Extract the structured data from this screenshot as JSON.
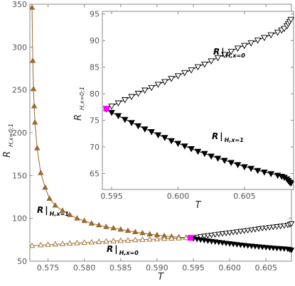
{
  "chart_data": [
    {
      "type": "line",
      "panel": "main",
      "xlabel": "T",
      "ylabel_main": "R",
      "ylabel_sub": "H,x=0;1",
      "xlim": [
        0.5725,
        0.6085
      ],
      "ylim": [
        50,
        350
      ],
      "xticks": [
        "0.575",
        "0.580",
        "0.585",
        "0.590",
        "0.595",
        "0.600",
        "0.605"
      ],
      "xtick_values": [
        0.575,
        0.58,
        0.585,
        0.59,
        0.595,
        0.6,
        0.605
      ],
      "yticks": [
        "50",
        "100",
        "150",
        "200",
        "250",
        "300",
        "350"
      ],
      "ytick_values": [
        50,
        100,
        150,
        200,
        250,
        300,
        350
      ],
      "grid": false,
      "annotations": [
        {
          "main": "R",
          "sub": "H,x=1",
          "near": "upper branch, left"
        },
        {
          "main": "R",
          "sub": "H,x=0",
          "near": "lower branch, right"
        }
      ],
      "special_point": {
        "x": 0.5946,
        "y": 77.2,
        "color": "#ff00ff"
      },
      "series": [
        {
          "color": "#9a6a2e",
          "marker": "filled-triangle-up",
          "x": [
            0.5728,
            0.5729,
            0.573,
            0.5731,
            0.5732,
            0.5735,
            0.574,
            0.5746,
            0.5752,
            0.576,
            0.577,
            0.578,
            0.579,
            0.58,
            0.581,
            0.582,
            0.583,
            0.584,
            0.585,
            0.586,
            0.587,
            0.588,
            0.589,
            0.59,
            0.591,
            0.592,
            0.593,
            0.594,
            0.5946
          ],
          "y": [
            346,
            284,
            251,
            231,
            212,
            182,
            153,
            136,
            123,
            115,
            109,
            104,
            100,
            97,
            94,
            92,
            90,
            88.5,
            87,
            85.5,
            84,
            82.8,
            81.5,
            80.5,
            79.5,
            78.7,
            78.0,
            77.5,
            77.2
          ]
        },
        {
          "color": "#9a6a2e",
          "marker": "open-triangle-up",
          "x": [
            0.5728,
            0.574,
            0.575,
            0.576,
            0.577,
            0.578,
            0.579,
            0.58,
            0.581,
            0.582,
            0.583,
            0.584,
            0.585,
            0.586,
            0.587,
            0.588,
            0.589,
            0.59,
            0.591,
            0.592,
            0.593,
            0.594,
            0.5946
          ],
          "y": [
            68,
            68.7,
            69.2,
            69.7,
            70.1,
            70.6,
            71.1,
            71.6,
            72.0,
            72.5,
            72.9,
            73.4,
            73.8,
            74.2,
            74.6,
            75.0,
            75.4,
            75.8,
            76.2,
            76.5,
            76.8,
            77.1,
            77.2
          ]
        },
        {
          "color": "#000000",
          "marker": "open-triangle-down",
          "x": [
            0.5946,
            0.595,
            0.5955,
            0.596,
            0.5965,
            0.597,
            0.5975,
            0.598,
            0.5985,
            0.599,
            0.5995,
            0.6,
            0.6005,
            0.601,
            0.6015,
            0.602,
            0.6025,
            0.603,
            0.6035,
            0.604,
            0.6045,
            0.605,
            0.6055,
            0.606,
            0.6065,
            0.607,
            0.6075,
            0.608,
            0.6083,
            0.6085
          ],
          "y": [
            77.2,
            77.7,
            78.3,
            78.9,
            79.5,
            80.1,
            80.7,
            81.2,
            81.8,
            82.3,
            82.9,
            83.4,
            84.0,
            84.5,
            85.1,
            85.6,
            86.2,
            86.8,
            87.4,
            88.0,
            88.6,
            89.1,
            89.6,
            90.1,
            90.6,
            91.1,
            91.6,
            92.3,
            93.2,
            94.0
          ]
        },
        {
          "color": "#000000",
          "marker": "filled-triangle-down",
          "x": [
            0.5946,
            0.595,
            0.5955,
            0.596,
            0.5965,
            0.597,
            0.5975,
            0.598,
            0.5985,
            0.599,
            0.5995,
            0.6,
            0.6005,
            0.601,
            0.6015,
            0.602,
            0.6025,
            0.603,
            0.6035,
            0.604,
            0.6045,
            0.605,
            0.6055,
            0.606,
            0.6065,
            0.607,
            0.6075,
            0.608,
            0.6083,
            0.6085
          ],
          "y": [
            77.2,
            76.5,
            75.9,
            75.2,
            74.6,
            74.0,
            73.4,
            72.9,
            72.3,
            71.8,
            71.2,
            70.7,
            70.2,
            69.7,
            69.2,
            68.8,
            68.3,
            67.9,
            67.5,
            67.1,
            66.7,
            66.3,
            66.0,
            65.6,
            65.3,
            65.0,
            64.7,
            64.3,
            63.7,
            63.2
          ]
        }
      ]
    },
    {
      "type": "line",
      "panel": "inset",
      "xlabel": "T",
      "ylabel_main": "R",
      "ylabel_sub": "H,x=0;1",
      "xlim": [
        0.5943,
        0.6087
      ],
      "ylim": [
        62,
        95.5
      ],
      "xticks": [
        "0.595",
        "0.600",
        "0.605"
      ],
      "xtick_values": [
        0.595,
        0.6,
        0.605
      ],
      "yticks": [
        "65",
        "70",
        "75",
        "80",
        "85",
        "90",
        "95"
      ],
      "ytick_values": [
        65,
        70,
        75,
        80,
        85,
        90,
        95
      ],
      "grid": false,
      "annotations": [
        {
          "main": "R",
          "sub": "H,x=0",
          "near": "upper branch, right"
        },
        {
          "main": "R",
          "sub": "H,x=1",
          "near": "lower branch, middle"
        }
      ],
      "special_point": {
        "x": 0.5946,
        "y": 77.2,
        "color": "#ff00ff"
      },
      "series": [
        {
          "color": "#000000",
          "marker": "open-triangle-down",
          "x": [
            0.5946,
            0.595,
            0.5955,
            0.596,
            0.5965,
            0.597,
            0.5975,
            0.598,
            0.5985,
            0.599,
            0.5995,
            0.6,
            0.6005,
            0.601,
            0.6015,
            0.602,
            0.6025,
            0.603,
            0.6035,
            0.604,
            0.6045,
            0.605,
            0.6055,
            0.606,
            0.6065,
            0.607,
            0.6075,
            0.6078,
            0.608,
            0.6082,
            0.6083,
            0.6084,
            0.6085
          ],
          "y": [
            77.2,
            77.7,
            78.3,
            78.9,
            79.5,
            80.1,
            80.7,
            81.2,
            81.8,
            82.3,
            82.9,
            83.4,
            84.0,
            84.5,
            85.1,
            85.6,
            86.2,
            86.8,
            87.4,
            88.0,
            88.6,
            89.1,
            89.6,
            90.1,
            90.6,
            91.1,
            91.6,
            92.0,
            92.3,
            92.8,
            93.2,
            93.6,
            94.0
          ]
        },
        {
          "color": "#000000",
          "marker": "filled-triangle-down",
          "x": [
            0.5946,
            0.595,
            0.5955,
            0.596,
            0.5965,
            0.597,
            0.5975,
            0.598,
            0.5985,
            0.599,
            0.5995,
            0.6,
            0.6005,
            0.601,
            0.6015,
            0.602,
            0.6025,
            0.603,
            0.6035,
            0.604,
            0.6045,
            0.605,
            0.6055,
            0.606,
            0.6065,
            0.607,
            0.6075,
            0.6078,
            0.608,
            0.6082,
            0.6083,
            0.6084,
            0.6085
          ],
          "y": [
            77.2,
            76.5,
            75.9,
            75.2,
            74.6,
            74.0,
            73.4,
            72.9,
            72.3,
            71.8,
            71.2,
            70.7,
            70.2,
            69.7,
            69.2,
            68.8,
            68.3,
            67.9,
            67.5,
            67.1,
            66.7,
            66.3,
            66.0,
            65.6,
            65.3,
            65.0,
            64.7,
            64.5,
            64.3,
            64.0,
            63.7,
            63.4,
            63.2
          ]
        }
      ]
    }
  ]
}
